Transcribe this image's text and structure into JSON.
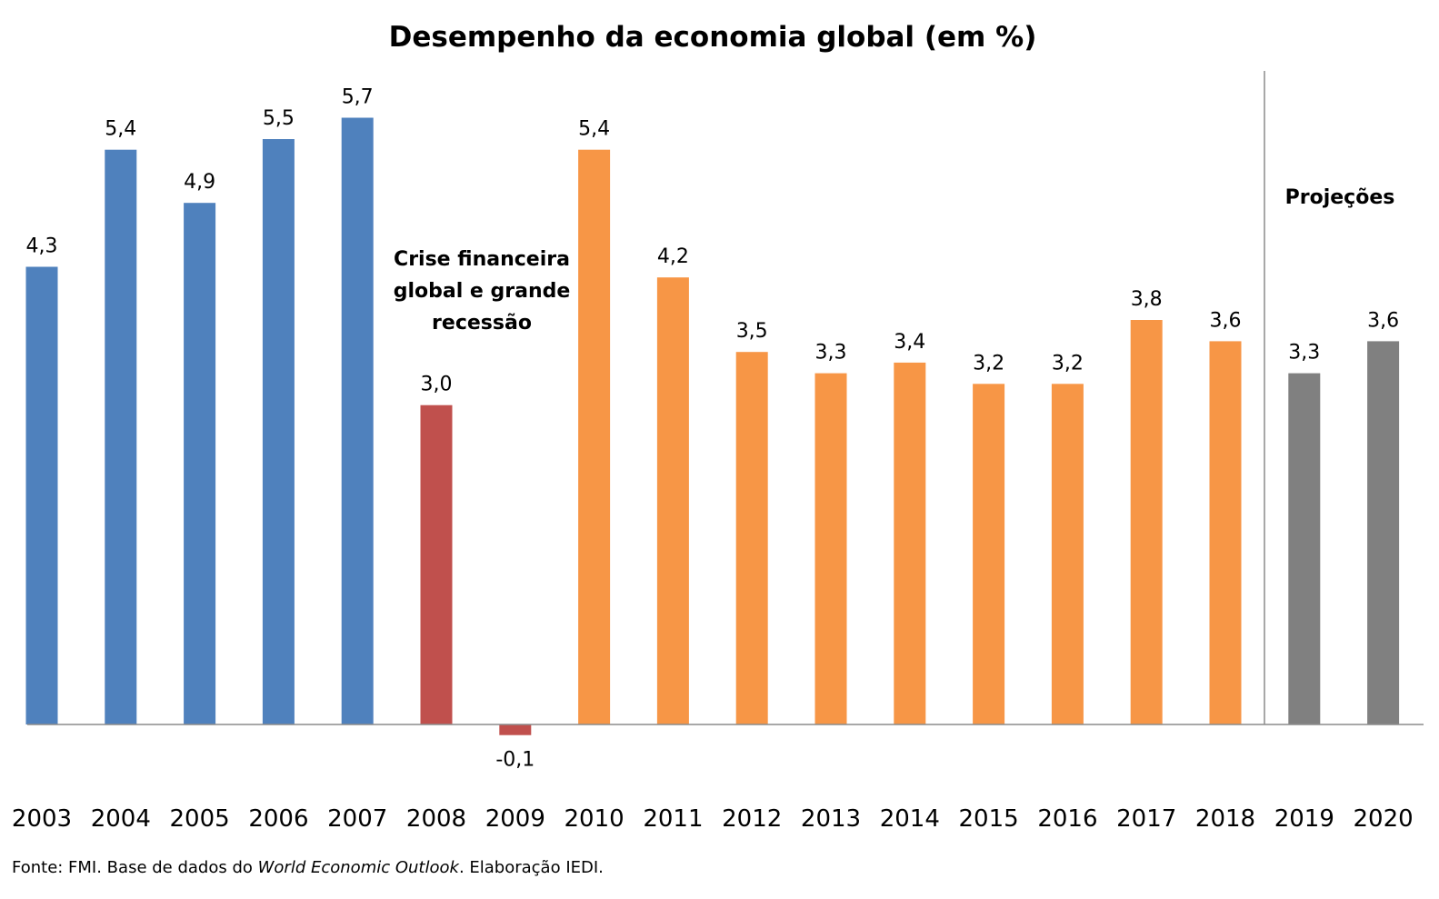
{
  "chart_data": {
    "type": "bar",
    "title": "Desempenho da economia global (em %)",
    "xlabel": "",
    "ylabel": "",
    "categories": [
      "2003",
      "2004",
      "2005",
      "2006",
      "2007",
      "2008",
      "2009",
      "2010",
      "2011",
      "2012",
      "2013",
      "2014",
      "2015",
      "2016",
      "2017",
      "2018",
      "2019",
      "2020"
    ],
    "values": [
      4.3,
      5.4,
      4.9,
      5.5,
      5.7,
      3.0,
      -0.1,
      5.4,
      4.2,
      3.5,
      3.3,
      3.4,
      3.2,
      3.2,
      3.8,
      3.6,
      3.3,
      3.6
    ],
    "value_labels": [
      "4,3",
      "5,4",
      "4,9",
      "5,5",
      "5,7",
      "3,0",
      "-0,1",
      "5,4",
      "4,2",
      "3,5",
      "3,3",
      "3,4",
      "3,2",
      "3,2",
      "3,8",
      "3,6",
      "3,3",
      "3,6"
    ],
    "bar_colors": [
      "#4f81bd",
      "#4f81bd",
      "#4f81bd",
      "#4f81bd",
      "#4f81bd",
      "#c0504d",
      "#c0504d",
      "#f79646",
      "#f79646",
      "#f79646",
      "#f79646",
      "#f79646",
      "#f79646",
      "#f79646",
      "#f79646",
      "#f79646",
      "#808080",
      "#808080"
    ],
    "ylim": [
      -0.5,
      6.0
    ],
    "grid": false,
    "legend": "none",
    "annotations": {
      "crisis_lines": [
        "Crise financeira",
        "global e grande",
        "recessão"
      ],
      "projections": "Projeções"
    },
    "projection_divider_after": "2018"
  },
  "source": {
    "prefix": "Fonte: FMI. Base de dados do ",
    "italic": "World Economic Outlook",
    "suffix": ". Elaboração IEDI."
  }
}
